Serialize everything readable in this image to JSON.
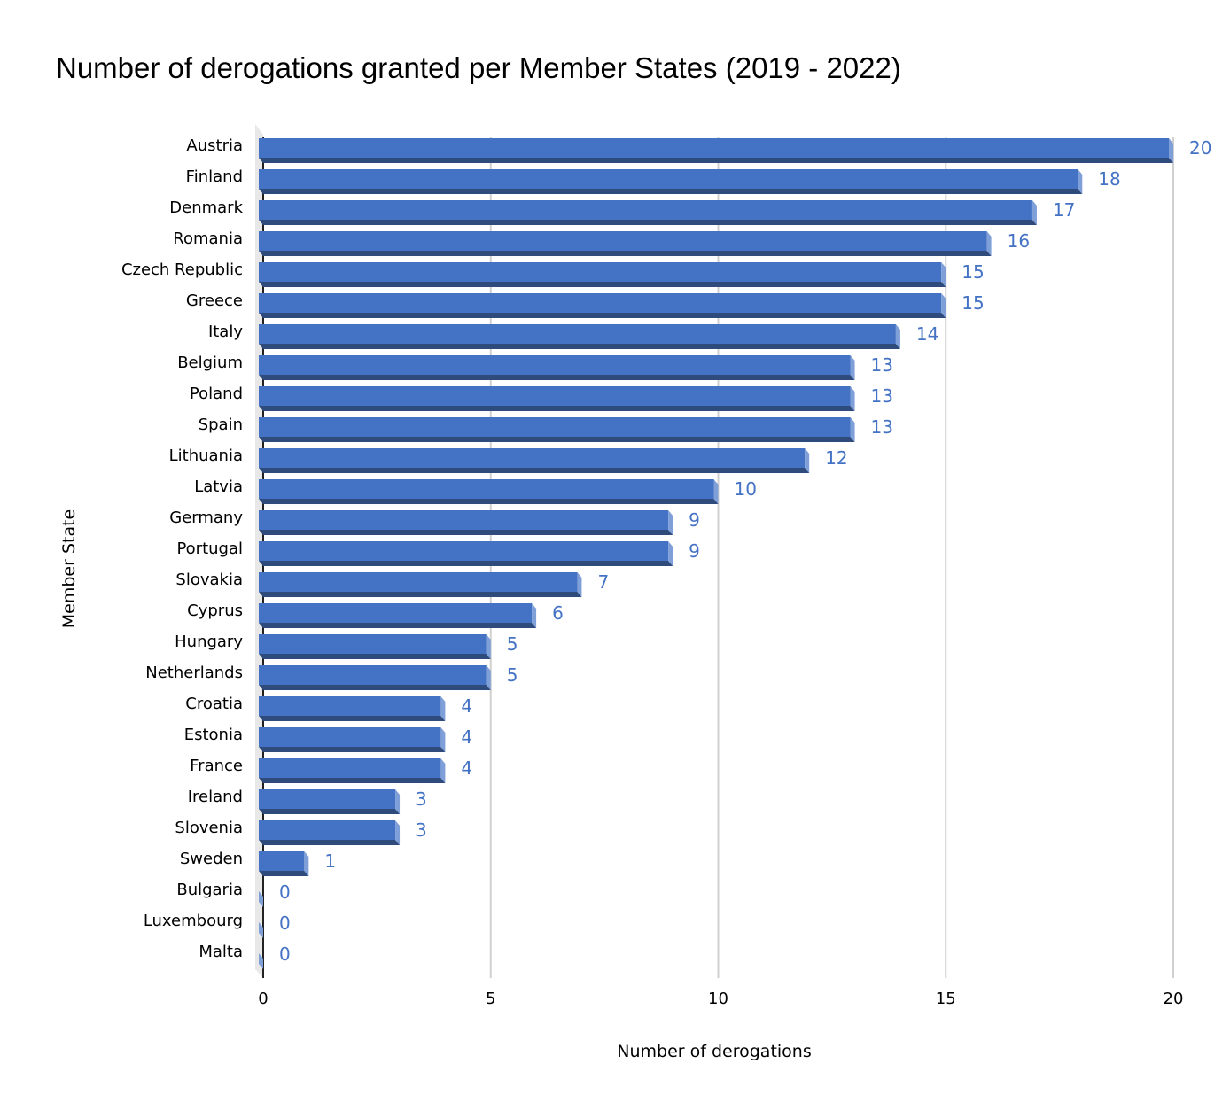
{
  "chart_data": {
    "type": "bar",
    "orientation": "horizontal",
    "style": "3d",
    "title": "Number of derogations granted per Member States (2019 - 2022)",
    "xlabel": "Number of derogations",
    "ylabel": "Member State",
    "xlim": [
      0,
      20
    ],
    "xticks": [
      0,
      5,
      10,
      15,
      20
    ],
    "grid": true,
    "legend": "none",
    "data_labels": true,
    "colors": {
      "bar": "#4472C4",
      "bar_bottom": "#2F4B7C",
      "bar_side": "#7F9FD8",
      "data_label": "#4472C4",
      "grid": "#D0D0D0"
    },
    "categories": [
      "Austria",
      "Finland",
      "Denmark",
      "Romania",
      "Czech Republic",
      "Greece",
      "Italy",
      "Belgium",
      "Poland",
      "Spain",
      "Lithuania",
      "Latvia",
      "Germany",
      "Portugal",
      "Slovakia",
      "Cyprus",
      "Hungary",
      "Netherlands",
      "Croatia",
      "Estonia",
      "France",
      "Ireland",
      "Slovenia",
      "Sweden",
      "Bulgaria",
      "Luxembourg",
      "Malta"
    ],
    "values": [
      20,
      18,
      17,
      16,
      15,
      15,
      14,
      13,
      13,
      13,
      12,
      10,
      9,
      9,
      7,
      6,
      5,
      5,
      4,
      4,
      4,
      3,
      3,
      1,
      0,
      0,
      0
    ]
  }
}
